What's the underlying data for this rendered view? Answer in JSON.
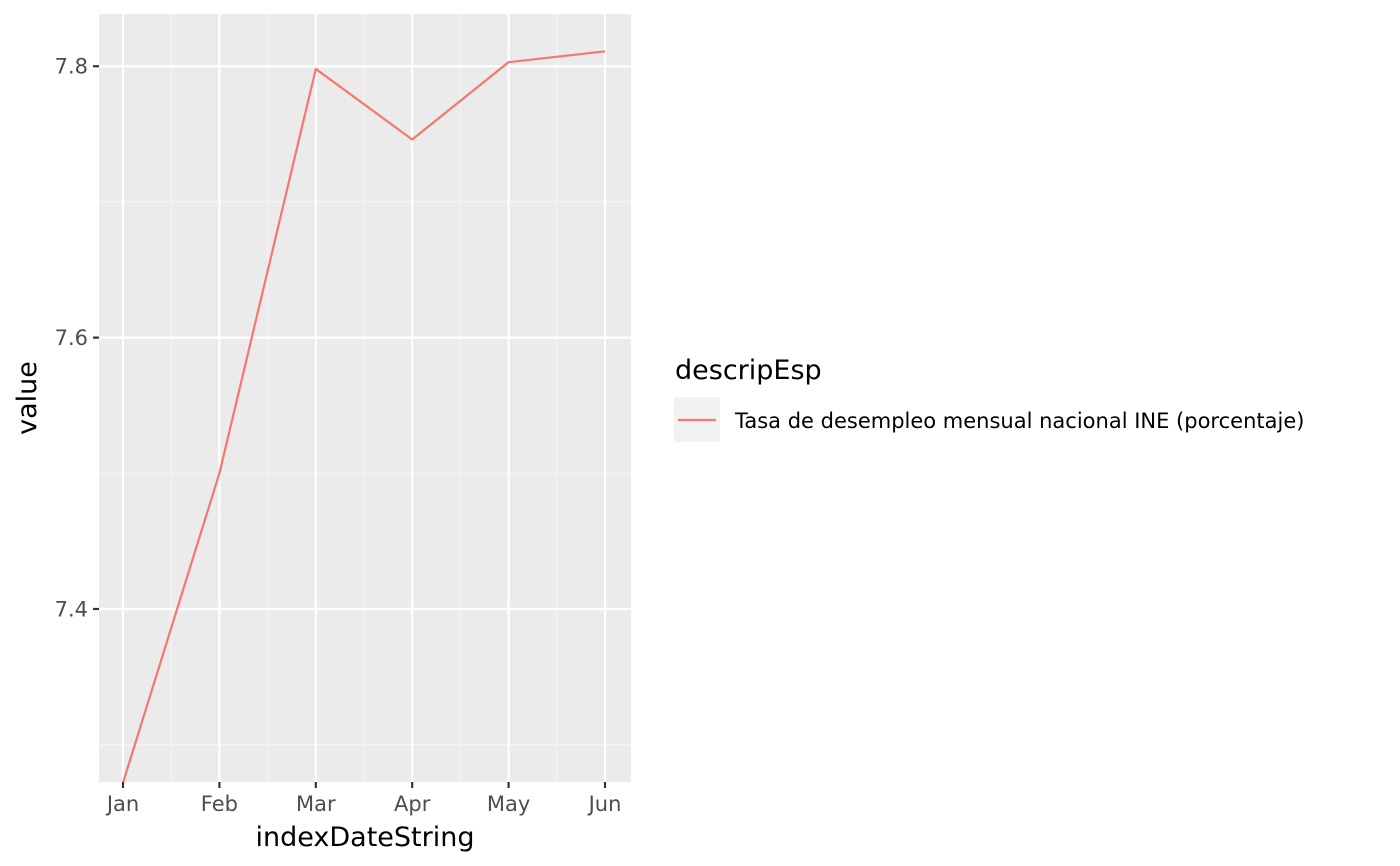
{
  "chart_data": {
    "type": "line",
    "x": [
      "Jan",
      "Feb",
      "Mar",
      "Apr",
      "May",
      "Jun"
    ],
    "xlabel": "indexDateString",
    "ylabel": "value",
    "ylim": [
      7.2725,
      7.8385
    ],
    "yticks": [
      7.4,
      7.6,
      7.8
    ],
    "ytick_labels": [
      "7.4",
      "7.6",
      "7.8"
    ],
    "grid": true,
    "legend": {
      "title": "descripEsp",
      "placement": "right"
    },
    "series": [
      {
        "name": "Tasa de desempleo mensual nacional INE (porcentaje)",
        "color": "#F8766D",
        "values": [
          7.272,
          7.5,
          7.798,
          7.746,
          7.803,
          7.811
        ]
      }
    ],
    "colors": {
      "panel_background": "#EBEBEB",
      "grid_major": "#FFFFFF",
      "grid_minor": "#F5F5F5",
      "tick_text": "#4D4D4D",
      "tick_mark": "#333333"
    }
  }
}
